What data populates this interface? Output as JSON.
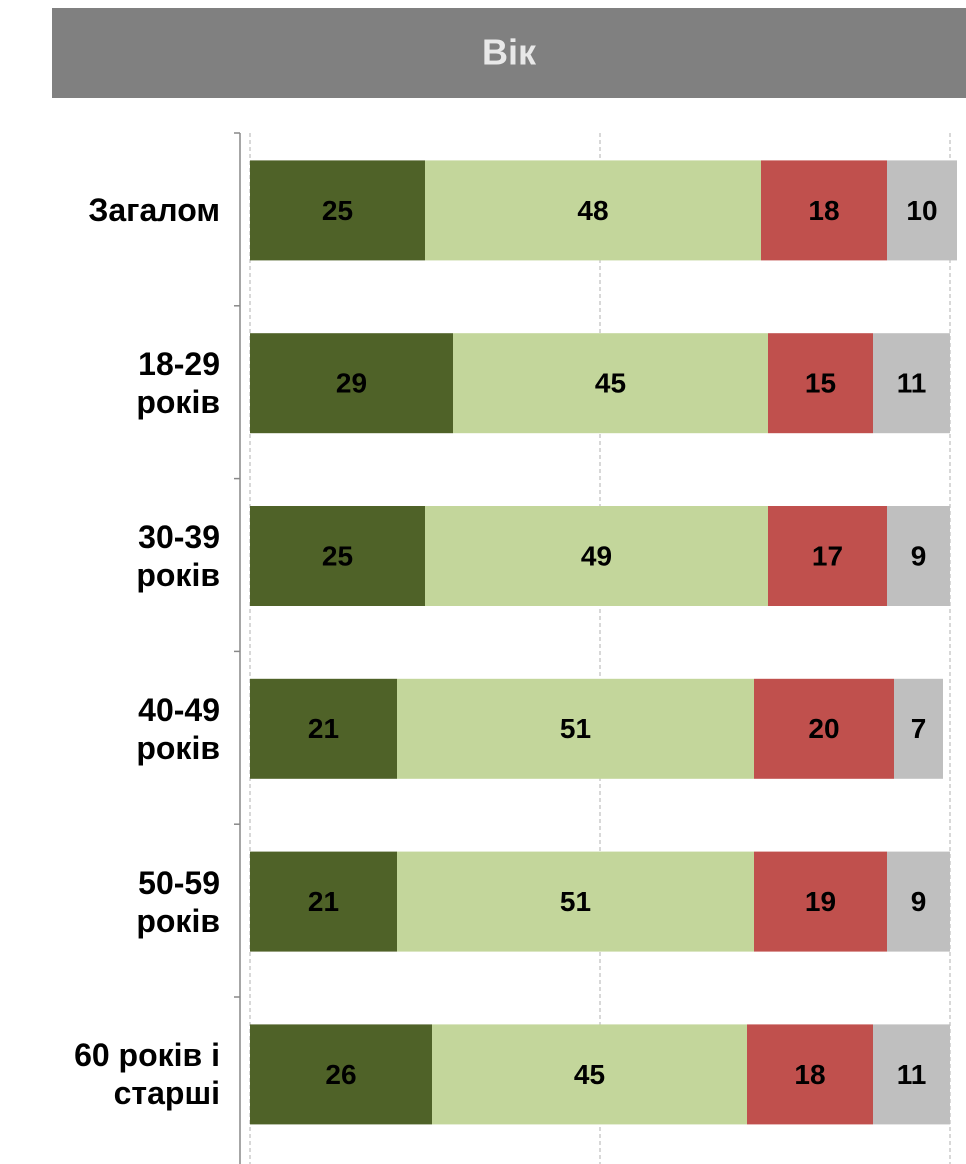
{
  "chart_data": {
    "type": "stacked-bar-horizontal",
    "title": "Вік",
    "categories": [
      "Загалом",
      "18-29\nроків",
      "30-39\nроків",
      "40-49\nроків",
      "50-59\nроків",
      "60 років і\nстарші"
    ],
    "series": [
      {
        "color": "#4f6228",
        "values": [
          25,
          29,
          25,
          21,
          21,
          26
        ]
      },
      {
        "color": "#c3d69b",
        "values": [
          48,
          45,
          49,
          51,
          51,
          45
        ]
      },
      {
        "color": "#c0504d",
        "values": [
          18,
          15,
          17,
          20,
          19,
          18
        ]
      },
      {
        "color": "#bfbfbf",
        "values": [
          10,
          11,
          9,
          7,
          9,
          11
        ]
      }
    ],
    "xlim": [
      0,
      100
    ],
    "xticks": [
      0,
      50,
      100
    ],
    "grid": true
  }
}
